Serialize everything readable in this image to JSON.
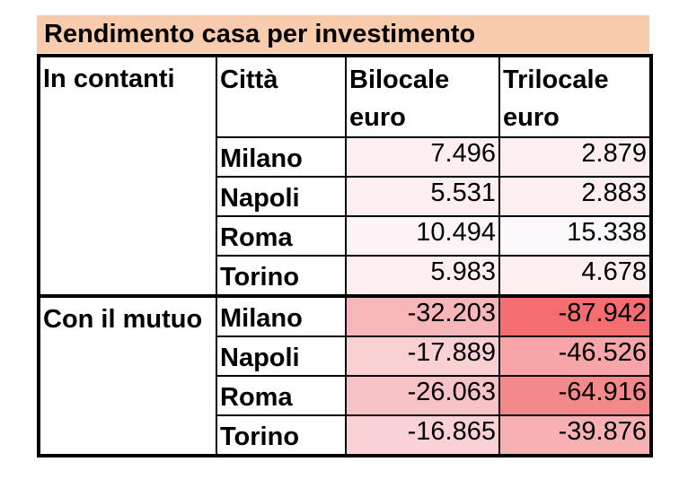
{
  "title": "Rendimento casa per investimento",
  "colors": {
    "title_background": "#f8cbad",
    "border": "#000000"
  },
  "header": {
    "group_cash": "In contanti",
    "city": "Città",
    "col_bilocale": "Bilocale euro",
    "col_trilocale": "Trilocale euro"
  },
  "groups": [
    {
      "label": "In contanti",
      "rows": [
        {
          "city": "Milano",
          "bilocale": "7.496",
          "trilocale": "2.879",
          "bilocale_bg": "#fdeff0",
          "trilocale_bg": "#fdeff0"
        },
        {
          "city": "Napoli",
          "bilocale": "5.531",
          "trilocale": "2.883",
          "bilocale_bg": "#fdeff0",
          "trilocale_bg": "#fdeff0"
        },
        {
          "city": "Roma",
          "bilocale": "10.494",
          "trilocale": "15.338",
          "bilocale_bg": "#fcf4f6",
          "trilocale_bg": "#faf8fb"
        },
        {
          "city": "Torino",
          "bilocale": "5.983",
          "trilocale": "4.678",
          "bilocale_bg": "#fdeff0",
          "trilocale_bg": "#fdeff0"
        }
      ]
    },
    {
      "label": "Con il mutuo",
      "rows": [
        {
          "city": "Milano",
          "bilocale": "-32.203",
          "trilocale": "-87.942",
          "bilocale_bg": "#f7b7ba",
          "trilocale_bg": "#f56d70"
        },
        {
          "city": "Napoli",
          "bilocale": "-17.889",
          "trilocale": "-46.526",
          "bilocale_bg": "#fad1d3",
          "trilocale_bg": "#f6a6a8"
        },
        {
          "city": "Roma",
          "bilocale": "-26.063",
          "trilocale": "-64.916",
          "bilocale_bg": "#f8c3c6",
          "trilocale_bg": "#f3898b"
        },
        {
          "city": "Torino",
          "bilocale": "-16.865",
          "trilocale": "-39.876",
          "bilocale_bg": "#fad2d5",
          "trilocale_bg": "#f7b1b3"
        }
      ]
    }
  ]
}
